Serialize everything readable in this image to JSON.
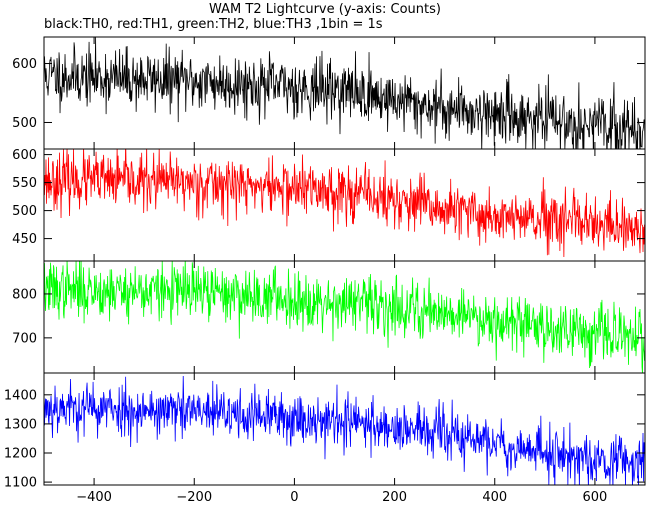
{
  "title": "WAM T2 Lightcurve (y-axis: Counts)",
  "legend_note": "black:TH0, red:TH1, green:TH2, blue:TH3 ,1bin = 1s",
  "chart_data": [
    {
      "type": "line",
      "name": "TH0",
      "color": "#000000",
      "xlim": [
        -500,
        700
      ],
      "ylim": [
        455,
        645
      ],
      "yticks": [
        500,
        600
      ],
      "trend": [
        [
          -500,
          580
        ],
        [
          -200,
          570
        ],
        [
          100,
          555
        ],
        [
          250,
          530
        ],
        [
          400,
          515
        ],
        [
          700,
          485
        ]
      ],
      "noise_sigma": 25,
      "seed": 11
    },
    {
      "type": "line",
      "name": "TH1",
      "color": "#ff0000",
      "xlim": [
        -500,
        700
      ],
      "ylim": [
        410,
        610
      ],
      "yticks": [
        450,
        500,
        550,
        600
      ],
      "trend": [
        [
          -500,
          555
        ],
        [
          -200,
          550
        ],
        [
          100,
          535
        ],
        [
          300,
          500
        ],
        [
          500,
          480
        ],
        [
          700,
          465
        ]
      ],
      "noise_sigma": 25,
      "seed": 23
    },
    {
      "type": "line",
      "name": "TH2",
      "color": "#00ff00",
      "xlim": [
        -500,
        700
      ],
      "ylim": [
        620,
        875
      ],
      "yticks": [
        700,
        800
      ],
      "trend": [
        [
          -500,
          810
        ],
        [
          -200,
          805
        ],
        [
          100,
          780
        ],
        [
          300,
          760
        ],
        [
          500,
          725
        ],
        [
          700,
          695
        ]
      ],
      "noise_sigma": 32,
      "seed": 37
    },
    {
      "type": "line",
      "name": "TH3",
      "color": "#0000ff",
      "xlim": [
        -500,
        700
      ],
      "ylim": [
        1090,
        1475
      ],
      "yticks": [
        1100,
        1200,
        1300,
        1400
      ],
      "trend": [
        [
          -500,
          1360
        ],
        [
          -200,
          1340
        ],
        [
          100,
          1310
        ],
        [
          300,
          1265
        ],
        [
          500,
          1200
        ],
        [
          700,
          1165
        ]
      ],
      "noise_sigma": 45,
      "seed": 53
    }
  ],
  "x_axis": {
    "ticks": [
      -400,
      -200,
      0,
      200,
      400,
      600
    ]
  }
}
